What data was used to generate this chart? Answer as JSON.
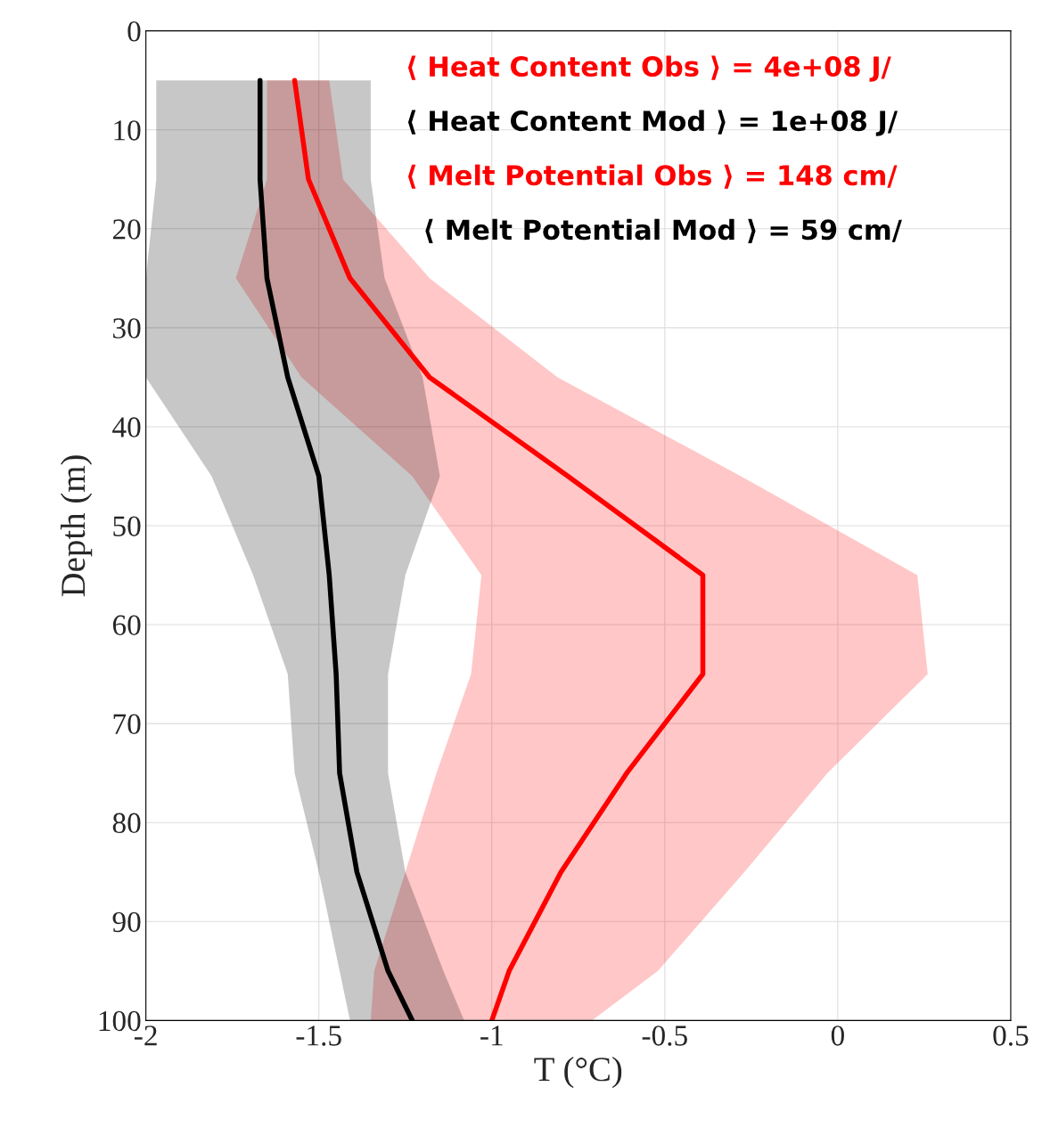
{
  "chart_data": {
    "type": "line",
    "orientation": "horizontal",
    "xlabel": "T (°C)",
    "ylabel": "Depth (m)",
    "xlim": [
      -2,
      0.5
    ],
    "xticks": [
      -2,
      -1.5,
      -1,
      -0.5,
      0,
      0.5
    ],
    "ylim": [
      100,
      0
    ],
    "yticks": [
      0,
      10,
      20,
      30,
      40,
      50,
      60,
      70,
      80,
      90,
      100
    ],
    "grid": true,
    "series": [
      {
        "color": "#ff0000",
        "x": [
          5,
          15,
          25,
          35,
          45,
          55,
          65,
          75,
          85,
          95,
          100
        ],
        "values": [
          -1.57,
          -1.53,
          -1.41,
          -1.18,
          -0.78,
          -0.39,
          -0.39,
          -0.61,
          -0.8,
          -0.95,
          -1.0
        ],
        "lower": [
          -1.65,
          -1.65,
          -1.74,
          -1.55,
          -1.23,
          -1.03,
          -1.06,
          -1.16,
          -1.25,
          -1.34,
          -1.35
        ],
        "upper": [
          -1.47,
          -1.43,
          -1.18,
          -0.81,
          -0.28,
          0.23,
          0.26,
          -0.03,
          -0.27,
          -0.52,
          -0.71
        ]
      },
      {
        "color": "#000000",
        "x": [
          5,
          15,
          25,
          35,
          45,
          55,
          65,
          75,
          85,
          95,
          100
        ],
        "values": [
          -1.67,
          -1.67,
          -1.65,
          -1.59,
          -1.5,
          -1.47,
          -1.45,
          -1.44,
          -1.39,
          -1.3,
          -1.23
        ],
        "lower": [
          -1.97,
          -1.97,
          -2.0,
          -2.0,
          -1.81,
          -1.69,
          -1.59,
          -1.57,
          -1.5,
          -1.44,
          -1.41
        ],
        "upper": [
          -1.35,
          -1.35,
          -1.31,
          -1.2,
          -1.15,
          -1.25,
          -1.3,
          -1.3,
          -1.25,
          -1.14,
          -1.08
        ]
      }
    ],
    "annotations": [
      "⟨ Heat Content Obs ⟩ = 4e+08 J/",
      "⟨ Heat Content Mod ⟩ = 1e+08 J/",
      "⟨ Melt Potential Obs ⟩ = 148 cm/",
      "⟨ Melt Potential Mod ⟩ = 59 cm/"
    ]
  }
}
